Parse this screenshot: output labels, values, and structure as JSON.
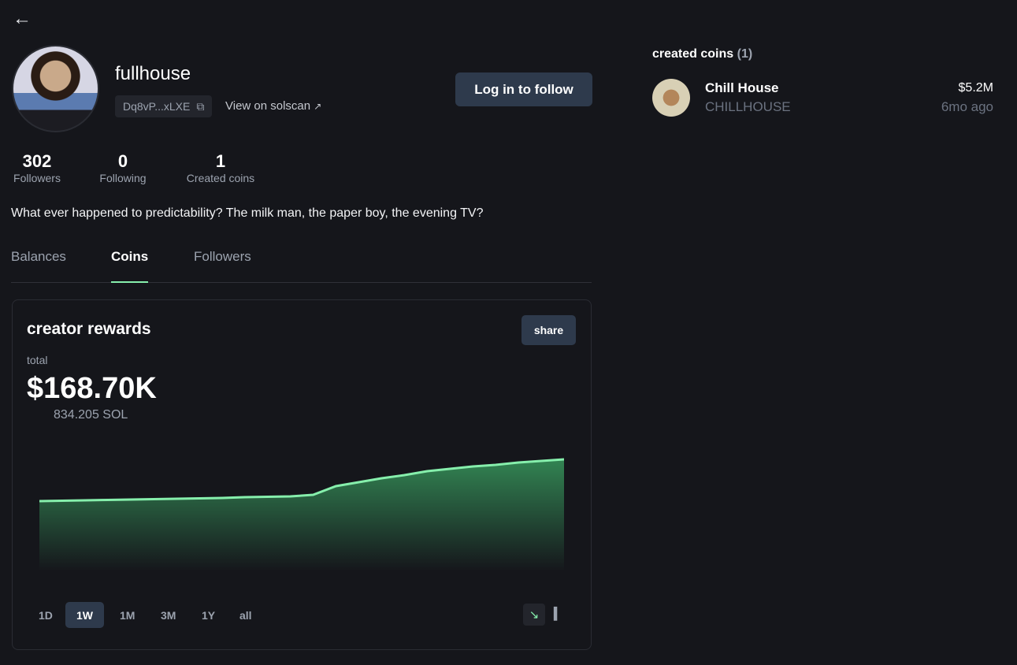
{
  "profile": {
    "back_icon": "arrow-left-icon",
    "username": "fullhouse",
    "address": "Dq8vP...xLXE",
    "solscan_label": "View on solscan",
    "follow_label": "Log in to follow",
    "stats": [
      {
        "value": "302",
        "label": "Followers"
      },
      {
        "value": "0",
        "label": "Following"
      },
      {
        "value": "1",
        "label": "Created coins"
      }
    ],
    "bio": "What ever happened to predictability? The milk man, the paper boy, the evening TV?"
  },
  "tabs": [
    {
      "label": "Balances"
    },
    {
      "label": "Coins",
      "active": true
    },
    {
      "label": "Followers"
    }
  ],
  "rewards": {
    "title": "creator rewards",
    "share_label": "share",
    "total_label": "total",
    "total_usd": "$168.70K",
    "total_sol": "834.205 SOL",
    "ranges": [
      "1D",
      "1W",
      "1M",
      "3M",
      "1Y",
      "all"
    ],
    "active_range": "1W",
    "chart_mode": "line",
    "line_color": "#86efac"
  },
  "chart_data": {
    "type": "area",
    "series": [
      {
        "values": [
          89,
          89.5,
          90,
          90.5,
          91,
          91.5,
          92,
          92.5,
          93,
          94,
          94.5,
          95,
          97,
          108,
          113,
          118,
          122,
          127,
          130,
          133,
          135,
          138,
          140,
          142
        ]
      }
    ]
  },
  "created_coins": {
    "title": "created coins",
    "count": "(1)",
    "items": [
      {
        "name": "Chill House",
        "ticker": "CHILLHOUSE",
        "market_cap": "$5.2M",
        "age": "6mo ago"
      }
    ]
  }
}
